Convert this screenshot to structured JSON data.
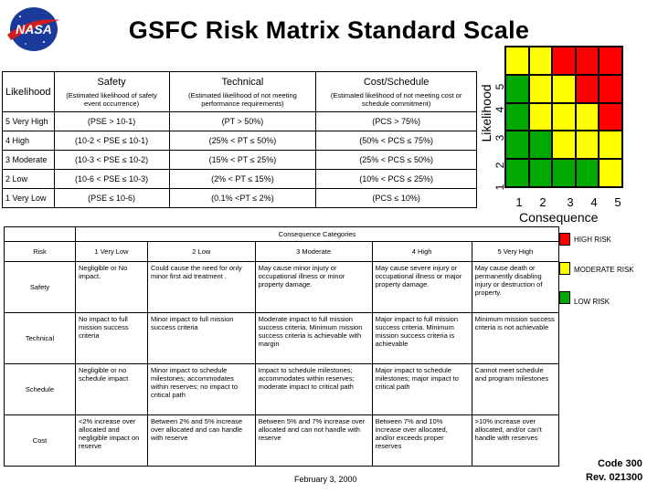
{
  "title": "GSFC Risk Matrix Standard Scale",
  "likelihood_table": {
    "corner": "Likelihood",
    "columns": [
      {
        "main": "Safety",
        "sub": "(Estimated likelihood of safety event occurrence)"
      },
      {
        "main": "Technical",
        "sub": "(Estimated likelihood of not meeting performance requirements)"
      },
      {
        "main": "Cost/Schedule",
        "sub": "(Estimated likelihood of not meeting cost or schedule commitment)"
      }
    ],
    "rows": [
      {
        "level": "5  Very High",
        "safety": "(PSE > 10-1)",
        "technical": "(PT > 50%)",
        "cost": "(PCS > 75%)"
      },
      {
        "level": "4  High",
        "safety": "(10-2 < PSE ≤ 10-1)",
        "technical": "(25% < PT ≤ 50%)",
        "cost": "(50% < PCS ≤ 75%)"
      },
      {
        "level": "3  Moderate",
        "safety": "(10-3 < PSE ≤ 10-2)",
        "technical": "(15% < PT ≤ 25%)",
        "cost": "(25% < PCS ≤ 50%)"
      },
      {
        "level": "2  Low",
        "safety": "(10-6 < PSE ≤ 10-3)",
        "technical": "(2% < PT ≤ 15%)",
        "cost": "(10% < PCS ≤ 25%)"
      },
      {
        "level": "1  Very Low",
        "safety": "(PSE ≤ 10-6)",
        "technical": "(0.1% <PT ≤ 2%)",
        "cost": "(PCS ≤ 10%)"
      }
    ]
  },
  "matrix": {
    "y_label": "Likelihood",
    "x_label": "Consequence",
    "y_ticks": [
      "5",
      "4",
      "3",
      "2",
      "1"
    ],
    "x_ticks": [
      "1",
      "2",
      "3",
      "4",
      "5"
    ],
    "colors": {
      "red": "#ff0000",
      "yellow": "#ffff00",
      "green": "#00a800"
    },
    "cells": [
      [
        "yellow",
        "yellow",
        "red",
        "red",
        "red"
      ],
      [
        "green",
        "yellow",
        "yellow",
        "red",
        "red"
      ],
      [
        "green",
        "yellow",
        "yellow",
        "yellow",
        "red"
      ],
      [
        "green",
        "green",
        "yellow",
        "yellow",
        "yellow"
      ],
      [
        "green",
        "green",
        "green",
        "green",
        "yellow"
      ]
    ]
  },
  "consequence_table": {
    "caption": "Consequence Categories",
    "risk_header": "Risk",
    "levels": [
      "1 Very Low",
      "2  Low",
      "3  Moderate",
      "4  High",
      "5  Very High"
    ],
    "rows": [
      {
        "label": "Safety",
        "cells": [
          "Negligible or No impact.",
          "Could cause the need for only minor first aid treatment .",
          "May cause minor injury or occupational illness or minor property damage.",
          "May cause severe injury or occupational illness or major property damage.",
          "May cause death or permanently disabling injury or destruction of property."
        ]
      },
      {
        "label": "Technical",
        "cells": [
          "No impact to full mission success criteria",
          "Minor impact to full mission success criteria",
          "Moderate impact to full mission success criteria. Minimum mission success criteria is achievable with margin",
          "Major impact to full mission success criteria. Minimum mission success criteria is achievable",
          "Minimum mission success criteria is not achievable"
        ]
      },
      {
        "label": "Schedule",
        "cells": [
          "Negligible or no schedule impact",
          "Minor impact to schedule milestones; accommodates within reserves; no impact to critical path",
          "Impact to schedule milestones; accommodates within reserves; moderate impact to critical path",
          "Major impact to schedule milestones; major impact to critical path",
          "Cannot meet schedule and program milestones"
        ]
      },
      {
        "label": "Cost",
        "cells": [
          "<2% increase over allocated and negligible impact on reserve",
          "Between 2% and 5% increase over allocated and can handle with reserve",
          "Between 5% and 7% increase over allocated and can not handle with reserve",
          "Between 7% and 10% increase over allocated, and/or exceeds proper reserves",
          ">10% increase over allocated, and/or can't handle with reserves"
        ]
      }
    ]
  },
  "legend": [
    {
      "label": "HIGH RISK",
      "color": "#ff0000"
    },
    {
      "label": "MODERATE RISK",
      "color": "#ffff00"
    },
    {
      "label": "LOW RISK",
      "color": "#00a800"
    }
  ],
  "footer": {
    "date": "February 3, 2000",
    "code": "Code 300",
    "rev": "Rev. 021300"
  }
}
